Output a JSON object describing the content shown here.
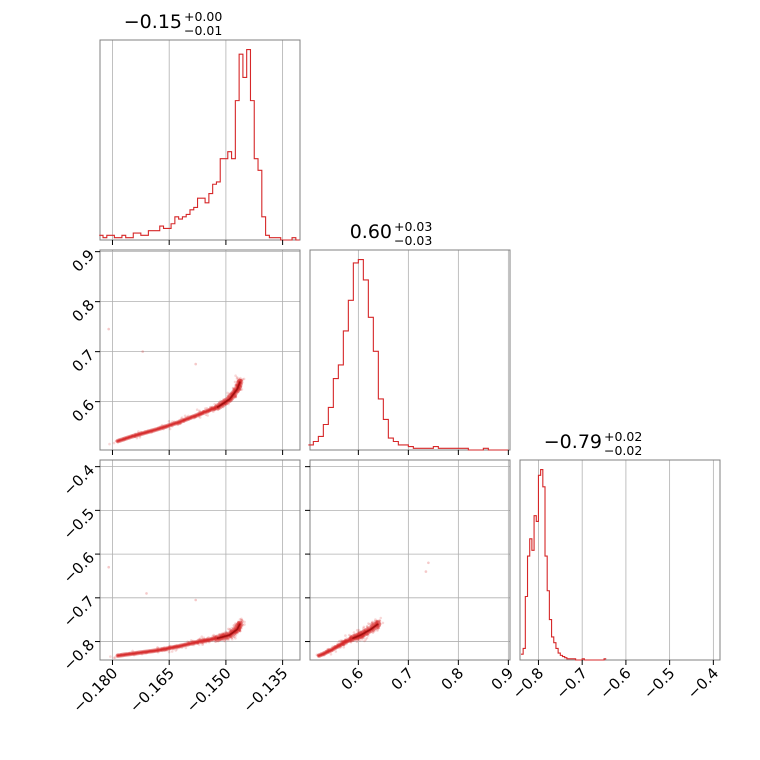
{
  "chart_data": {
    "type": "corner",
    "color": "#d62728",
    "grid": true,
    "params": [
      {
        "title": {
          "median": "−0.15",
          "plus": "+0.00",
          "minus": "−0.01"
        },
        "range": [
          -0.1833,
          -0.1304
        ],
        "ticks": [
          -0.18,
          -0.165,
          -0.15,
          -0.135
        ],
        "tick_labels": [
          "−0.180",
          "−0.165",
          "−0.150",
          "−0.135"
        ],
        "hist_x": [
          -0.183,
          -0.182,
          -0.181,
          -0.18,
          -0.179,
          -0.178,
          -0.177,
          -0.176,
          -0.175,
          -0.174,
          -0.173,
          -0.172,
          -0.171,
          -0.17,
          -0.169,
          -0.168,
          -0.167,
          -0.166,
          -0.165,
          -0.164,
          -0.163,
          -0.162,
          -0.161,
          -0.16,
          -0.159,
          -0.158,
          -0.157,
          -0.156,
          -0.155,
          -0.154,
          -0.153,
          -0.152,
          -0.151,
          -0.15,
          -0.149,
          -0.148,
          -0.147,
          -0.146,
          -0.145,
          -0.144,
          -0.143,
          -0.142,
          -0.141,
          -0.14,
          -0.139,
          -0.138,
          -0.137,
          -0.136,
          -0.135,
          -0.134,
          -0.133,
          -0.132,
          -0.131
        ],
        "hist_y": [
          2,
          1,
          2,
          2,
          1,
          1,
          2,
          1,
          1,
          3,
          3,
          2,
          2,
          4,
          4,
          4,
          6,
          5,
          5,
          7,
          10,
          9,
          10,
          11,
          13,
          14,
          18,
          18,
          16,
          20,
          24,
          25,
          35,
          35,
          38,
          35,
          60,
          80,
          70,
          82,
          60,
          35,
          30,
          10,
          2,
          1,
          1,
          1,
          0,
          0,
          0,
          1,
          0
        ]
      },
      {
        "title": {
          "median": "0.60",
          "plus": "+0.03",
          "minus": "−0.03"
        },
        "range": [
          0.5033,
          0.9033
        ],
        "ticks": [
          0.6,
          0.7,
          0.8,
          0.9
        ],
        "tick_labels": [
          "0.6",
          "0.7",
          "0.8",
          "0.9"
        ],
        "ylabels_extra": [
          0.6,
          0.7,
          0.8,
          0.9
        ],
        "hist_x": [
          0.505,
          0.515,
          0.525,
          0.535,
          0.545,
          0.555,
          0.565,
          0.575,
          0.585,
          0.595,
          0.605,
          0.615,
          0.625,
          0.635,
          0.645,
          0.655,
          0.665,
          0.675,
          0.685,
          0.695,
          0.705,
          0.715,
          0.725,
          0.735,
          0.745,
          0.755,
          0.765,
          0.775,
          0.785,
          0.795,
          0.805,
          0.815,
          0.825,
          0.835,
          0.845,
          0.855,
          0.865,
          0.875,
          0.885,
          0.895
        ],
        "hist_y": [
          3,
          5,
          8,
          15,
          25,
          42,
          50,
          70,
          88,
          110,
          112,
          100,
          78,
          58,
          30,
          18,
          7,
          5,
          3,
          3,
          2,
          1,
          1,
          1,
          1,
          2,
          1,
          1,
          1,
          1,
          1,
          1,
          0,
          0,
          0,
          1,
          0,
          0,
          0,
          0
        ]
      },
      {
        "title": {
          "median": "−0.79",
          "plus": "+0.02",
          "minus": "−0.02"
        },
        "range": [
          -0.8422,
          -0.3848
        ],
        "ticks": [
          -0.8,
          -0.7,
          -0.6,
          -0.5,
          -0.4
        ],
        "tick_labels": [
          "−0.8",
          "−0.7",
          "−0.6",
          "−0.5",
          "−0.4"
        ],
        "hist_x": [
          -0.8375,
          -0.8325,
          -0.8275,
          -0.8225,
          -0.8175,
          -0.8125,
          -0.8075,
          -0.8025,
          -0.7975,
          -0.7925,
          -0.7875,
          -0.7825,
          -0.7775,
          -0.7725,
          -0.7675,
          -0.7625,
          -0.7575,
          -0.7525,
          -0.7475,
          -0.7425,
          -0.7375,
          -0.7325,
          -0.7275,
          -0.7225,
          -0.7175,
          -0.7125,
          -0.7075,
          -0.7025,
          -0.6975,
          -0.6925,
          -0.6875,
          -0.6825,
          -0.6775,
          -0.6725,
          -0.6675,
          -0.6625,
          -0.6575,
          -0.6525,
          -0.6475
        ],
        "hist_y": [
          5,
          10,
          55,
          90,
          105,
          95,
          125,
          120,
          160,
          165,
          150,
          90,
          60,
          35,
          20,
          15,
          10,
          6,
          4,
          3,
          2,
          1,
          1,
          1,
          1,
          0,
          0,
          0,
          1,
          0,
          0,
          0,
          0,
          0,
          0,
          0,
          0,
          0,
          1
        ]
      }
    ],
    "ridge": {
      "p0_knots": [
        -0.181,
        -0.175,
        -0.168,
        -0.162,
        -0.157,
        -0.152,
        -0.149,
        -0.147,
        -0.146
      ],
      "p1_knots": [
        0.515,
        0.53,
        0.545,
        0.56,
        0.575,
        0.59,
        0.605,
        0.625,
        0.645
      ],
      "p2_knots": [
        -0.835,
        -0.828,
        -0.82,
        -0.81,
        -0.8,
        -0.792,
        -0.785,
        -0.772,
        -0.755
      ]
    }
  }
}
